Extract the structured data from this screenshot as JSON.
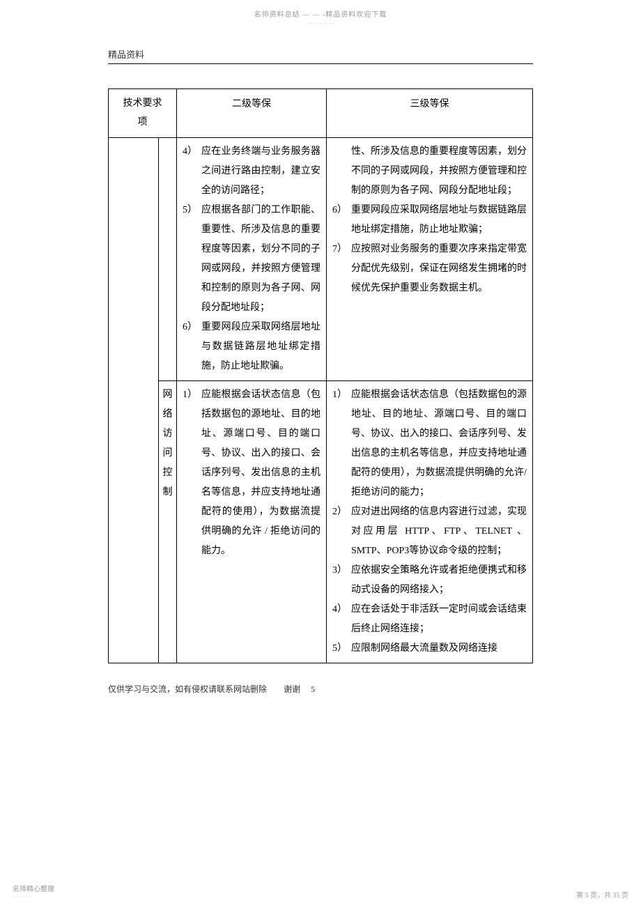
{
  "header": {
    "top_line": "名师资料总结 — — -精品资料欢迎下载",
    "top_dashes": "- - - - - - - - -",
    "section_label": "精品资料"
  },
  "table": {
    "columns": {
      "req_top": "技术要求",
      "req_bottom": "项",
      "level2": "二级等保",
      "level3": "三级等保"
    },
    "rows": [
      {
        "sub_label": "",
        "level2_items": [
          {
            "num": "4）",
            "text": "应在业务终端与业务服务器之间进行路由控制，建立安全的访问路径；"
          },
          {
            "num": "5）",
            "text": "应根据各部门的工作职能、重要性、所涉及信息的重要程度等因素，划分不同的子网或网段，并按照方便管理和控制的原则为各子网、网段分配地址段；"
          },
          {
            "num": "6）",
            "text": "重要网段应采取网络层地址与数据链路层地址绑定措施，防止地址欺骗。"
          }
        ],
        "level3_items": [
          {
            "num": "",
            "text": "性、所涉及信息的重要程度等因素，划分不同的子网或网段，并按照方便管理和控制的原则为各子网、网段分配地址段；"
          },
          {
            "num": "6）",
            "text": "重要网段应采取网络层地址与数据链路层地址绑定措施，防止地址欺骗；"
          },
          {
            "num": "7）",
            "text": "应按照对业务服务的重要次序来指定带宽分配优先级别，保证在网络发生拥堵的时候优先保护重要业务数据主机。"
          }
        ]
      },
      {
        "sub_label": "网络访问控制",
        "level2_items": [
          {
            "num": "1）",
            "text": "应能根据会话状态信息（包括数据包的源地址、目的地址、源端口号、目的端口号、协议、出入的接口、会话序列号、发出信息的主机名等信息，并应支持地址通配符的使用），为数据流提供明确的允许 / 拒绝访问的能力。"
          }
        ],
        "level3_items": [
          {
            "num": "1）",
            "text": "应能根据会话状态信息（包括数据包的源地址、目的地址、源端口号、目的端口号、协议、出入的接口、会话序列号、发出信息的主机名等信息，并应支持地址通配符的使用），为数据流提供明确的允许/拒绝访问的能力；"
          },
          {
            "num": "2）",
            "text": "应对进出网络的信息内容进行过滤，实现对应用层 HTTP、FTP、TELNET 、SMTP、POP3等协议命令级的控制；"
          },
          {
            "num": "3）",
            "text": "应依据安全策略允许或者拒绝便携式和移动式设备的网络接入；"
          },
          {
            "num": "4）",
            "text": "应在会话处于非活跃一定时间或会话结束后终止网络连接；"
          },
          {
            "num": "5）",
            "text": "应限制网络最大流量数及网络连接"
          }
        ]
      }
    ]
  },
  "footer": {
    "note_text": "仅供学习与交流，如有侵权请联系网站删除　　谢谢",
    "note_page": "5",
    "bottom_left": "名师精心整理",
    "bottom_left_dashes": "- - - - - -",
    "bottom_right": "第 5 页，共 35 页"
  }
}
